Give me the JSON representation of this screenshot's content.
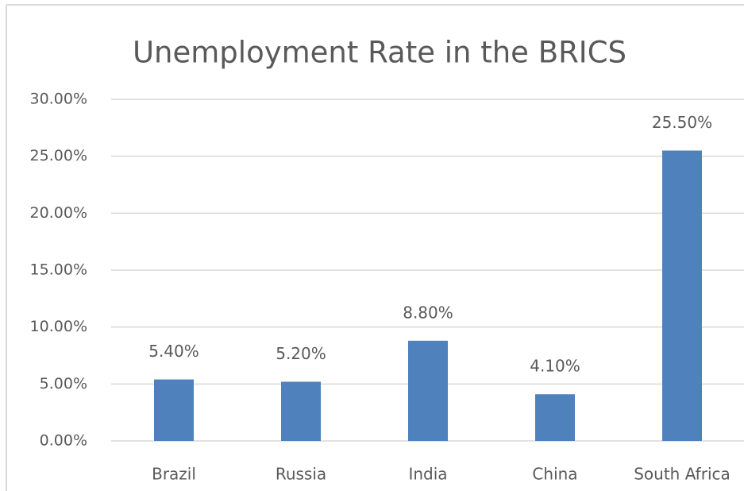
{
  "chart_data": {
    "type": "bar",
    "title": "Unemployment Rate in the BRICS",
    "categories": [
      "Brazil",
      "Russia",
      "India",
      "China",
      "South Africa"
    ],
    "values": [
      5.4,
      5.2,
      8.8,
      4.1,
      25.5
    ],
    "value_labels": [
      "5.40%",
      "5.20%",
      "8.80%",
      "4.10%",
      "25.50%"
    ],
    "color": "#4f81bd",
    "ylim": [
      0,
      30
    ],
    "yticks": [
      {
        "value": 0,
        "label": "0.00%"
      },
      {
        "value": 5,
        "label": "5.00%"
      },
      {
        "value": 10,
        "label": "10.00%"
      },
      {
        "value": 15,
        "label": "15.00%"
      },
      {
        "value": 20,
        "label": "20.00%"
      },
      {
        "value": 25,
        "label": "25.00%"
      },
      {
        "value": 30,
        "label": "30.00%"
      }
    ],
    "grid": true
  }
}
